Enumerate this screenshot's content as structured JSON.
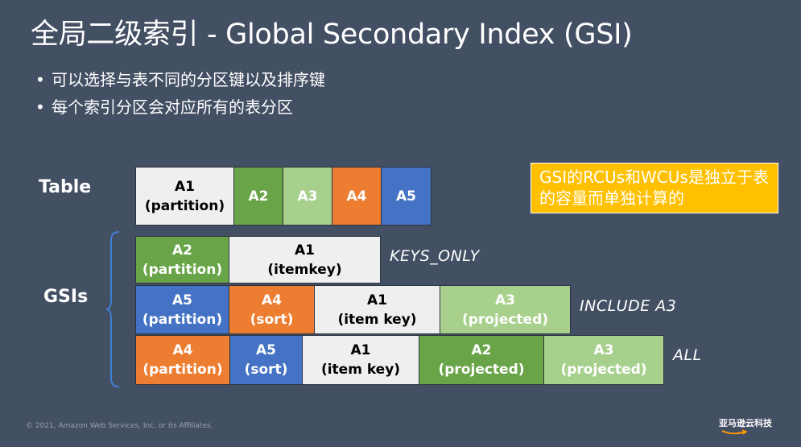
{
  "title": "全局二级索引 - Global Secondary Index (GSI)",
  "bullets": [
    "可以选择与表不同的分区键以及排序键",
    "每个索引分区会对应所有的表分区"
  ],
  "labels": {
    "table": "Table",
    "gsis": "GSIs"
  },
  "table_row": [
    {
      "line1": "A1",
      "line2": "(partition)",
      "color": "#efefef"
    },
    {
      "line1": "A2",
      "line2": "",
      "color": "#69a548"
    },
    {
      "line1": "A3",
      "line2": "",
      "color": "#a8d08d"
    },
    {
      "line1": "A4",
      "line2": "",
      "color": "#ed7d31"
    },
    {
      "line1": "A5",
      "line2": "",
      "color": "#4472c4"
    }
  ],
  "gsi_rows": [
    {
      "projection": "KEYS_ONLY",
      "cells": [
        {
          "line1": "A2",
          "line2": "(partition)",
          "color": "#69a548"
        },
        {
          "line1": "A1",
          "line2": "(itemkey)",
          "color": "#efefef"
        }
      ]
    },
    {
      "projection": "INCLUDE A3",
      "cells": [
        {
          "line1": "A5",
          "line2": "(partition)",
          "color": "#4472c4"
        },
        {
          "line1": "A4",
          "line2": "(sort)",
          "color": "#ed7d31"
        },
        {
          "line1": "A1",
          "line2": "(item key)",
          "color": "#efefef"
        },
        {
          "line1": "A3",
          "line2": "(projected)",
          "color": "#a8d08d"
        }
      ]
    },
    {
      "projection": "ALL",
      "cells": [
        {
          "line1": "A4",
          "line2": "(partition)",
          "color": "#ed7d31"
        },
        {
          "line1": "A5",
          "line2": "(sort)",
          "color": "#4472c4"
        },
        {
          "line1": "A1",
          "line2": "(item key)",
          "color": "#efefef"
        },
        {
          "line1": "A2",
          "line2": "(projected)",
          "color": "#69a548"
        },
        {
          "line1": "A3",
          "line2": "(projected)",
          "color": "#a8d08d"
        }
      ]
    }
  ],
  "note": "GSI的RCUs和WCUs是独立于表的容量而单独计算的",
  "footer": "© 2021, Amazon Web Services, Inc. or its Affiliates.",
  "logo": "亚马逊云科技",
  "colors": {
    "background": "#434f63",
    "note_background": "#ffc000",
    "brace": "#3f7fd0"
  }
}
